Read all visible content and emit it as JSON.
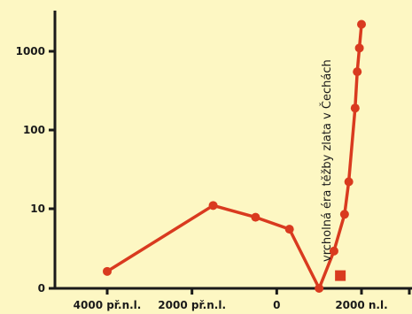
{
  "chart_data": {
    "type": "line",
    "title": "",
    "xlabel": "",
    "ylabel": "",
    "y_scale": "log",
    "x_ticks": [
      {
        "x": -4000,
        "label": "4000 př.n.l."
      },
      {
        "x": -2000,
        "label": "2000 př.n.l."
      },
      {
        "x": 0,
        "label": "0"
      },
      {
        "x": 2000,
        "label": "2000 n.l."
      }
    ],
    "y_ticks": [
      {
        "y": 0,
        "label": "0"
      },
      {
        "y": 10,
        "label": "10"
      },
      {
        "y": 100,
        "label": "100"
      },
      {
        "y": 1000,
        "label": "1000"
      }
    ],
    "xlim": [
      -4700,
      3000
    ],
    "ylim": [
      0,
      2000
    ],
    "series": [
      {
        "color": "#d93a1f",
        "marker": "circle",
        "points": [
          {
            "x": -4000,
            "y": 1.6
          },
          {
            "x": -1500,
            "y": 11
          },
          {
            "x": -500,
            "y": 7.8
          },
          {
            "x": 300,
            "y": 5.5
          },
          {
            "x": 1000,
            "y": 1
          },
          {
            "x": 1350,
            "y": 2.9
          },
          {
            "x": 1600,
            "y": 8.5
          },
          {
            "x": 1700,
            "y": 22
          },
          {
            "x": 1850,
            "y": 190
          },
          {
            "x": 1900,
            "y": 550
          },
          {
            "x": 1950,
            "y": 1100
          },
          {
            "x": 2000,
            "y": 2200
          }
        ]
      }
    ],
    "highlight_point": {
      "x": 1250,
      "y": 1.15,
      "marker": "square",
      "color": "#d93a1f"
    },
    "annotations": [
      {
        "text": "vrcholná éra těžby zlata v Čechách",
        "x": 1200,
        "orientation": "vertical"
      }
    ]
  }
}
